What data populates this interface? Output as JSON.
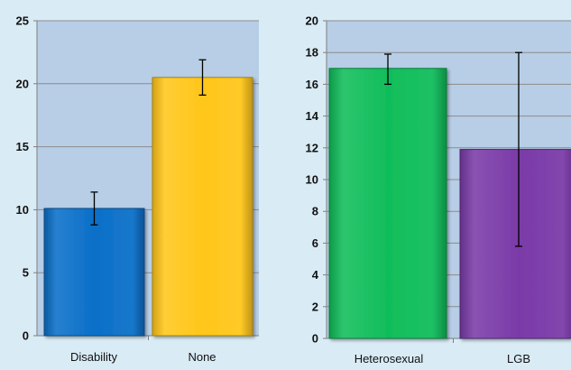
{
  "page": {
    "background": "#d9ebf5",
    "plot_background": "#b7cee6",
    "gridline_color": "#8c8c8c"
  },
  "chart_data": [
    {
      "type": "bar",
      "title": "",
      "xlabel": "",
      "ylabel": "",
      "categories": [
        "Disability",
        "None"
      ],
      "values": [
        10.1,
        20.5
      ],
      "error_low": [
        8.8,
        19.1
      ],
      "error_high": [
        11.4,
        21.9
      ],
      "colors": [
        "#0a6fc8",
        "#ffc61a"
      ],
      "ylim": [
        0,
        25
      ],
      "yticks": [
        0,
        5,
        10,
        15,
        20,
        25
      ],
      "ytick_labels": [
        "0",
        "5",
        "10",
        "15",
        "20",
        "25"
      ],
      "grid": true,
      "legend": "none"
    },
    {
      "type": "bar",
      "title": "",
      "xlabel": "",
      "ylabel": "",
      "categories": [
        "Heterosexual",
        "LGB"
      ],
      "values": [
        17.0,
        11.9
      ],
      "error_low": [
        16.0,
        5.8
      ],
      "error_high": [
        17.9,
        18.0
      ],
      "colors": [
        "#10bd5a",
        "#7a3aa8"
      ],
      "ylim": [
        0,
        20
      ],
      "yticks": [
        0,
        2,
        4,
        6,
        8,
        10,
        12,
        14,
        16,
        18,
        20
      ],
      "ytick_labels": [
        "0",
        "2",
        "4",
        "6",
        "8",
        "10",
        "12",
        "14",
        "16",
        "18",
        "20"
      ],
      "grid": true,
      "legend": "none"
    }
  ]
}
